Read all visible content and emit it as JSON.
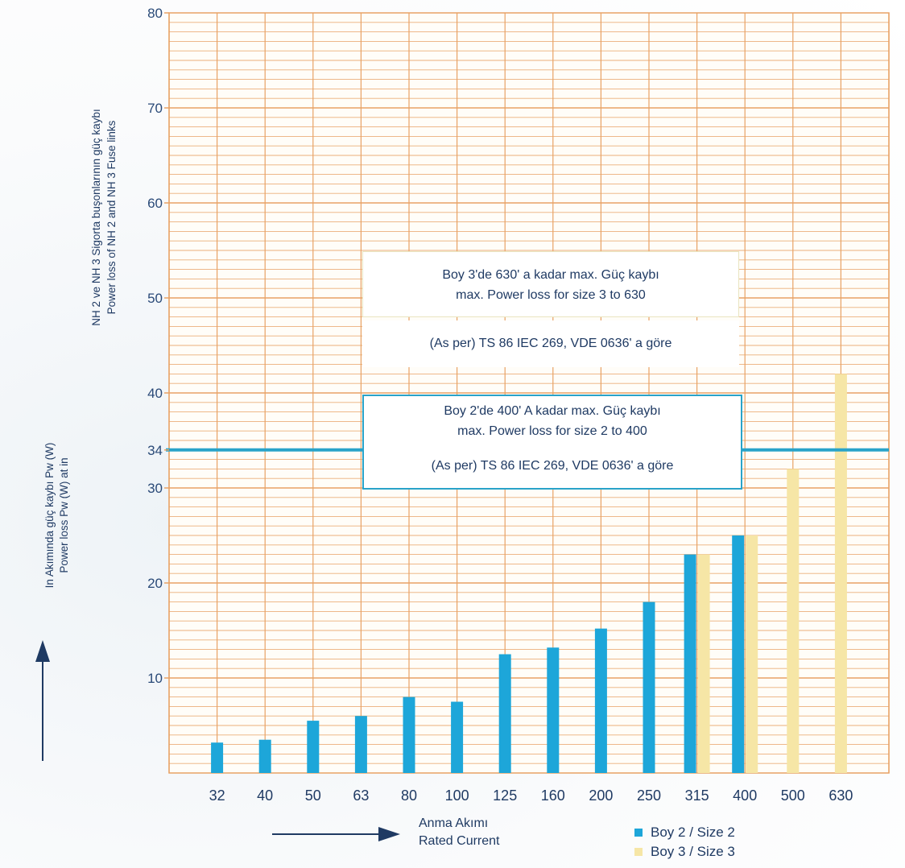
{
  "colors": {
    "size2": "#1da6d9",
    "size3": "#f6e6a6",
    "grid": "#e8a265",
    "limit_line": "#29a3c9"
  },
  "chart_data": {
    "type": "bar",
    "categories": [
      "32",
      "40",
      "50",
      "63",
      "80",
      "100",
      "125",
      "160",
      "200",
      "250",
      "315",
      "400",
      "500",
      "630"
    ],
    "series": [
      {
        "name": "Boy 2 / Size 2",
        "values": [
          3.2,
          3.5,
          5.5,
          6,
          8,
          7.5,
          12.5,
          13.2,
          15.2,
          18,
          23,
          25,
          null,
          null
        ]
      },
      {
        "name": "Boy 3 / Size 3",
        "values": [
          null,
          null,
          null,
          null,
          null,
          null,
          null,
          null,
          null,
          null,
          23,
          25,
          32,
          42
        ]
      }
    ],
    "ylim": [
      0,
      80
    ],
    "yticks": [
      10,
      20,
      30,
      34,
      40,
      50,
      60,
      70,
      80
    ],
    "reference_lines": [
      {
        "value": 34,
        "label": "34"
      }
    ],
    "ylabel_lines": [
      "NH 2 ve NH 3 Sigorta buşonlarının güç kaybı",
      "Power loss of NH 2 and NH 3 Fuse links",
      "In Akımında güç kaybı Pw (W)",
      "Power loss Pw (W) at in"
    ],
    "xlabel_lines": [
      "Anma Akımı",
      "Rated Current"
    ],
    "grid": true,
    "legend_position": "bottom-right"
  },
  "annotations": {
    "size3_box": {
      "line1": "Boy 3'de 630' a kadar max. Güç kaybı",
      "line2": "max.  Power  loss  for  size  3    to  630",
      "line3": "(As per) TS 86 IEC 269, VDE 0636' a göre"
    },
    "size2_box": {
      "line1": "Boy 2'de 400' A kadar max. Güç kaybı",
      "line2": "max.  Power  loss  for  size  2    to  400",
      "line3": "(As per) TS 86 IEC 269, VDE 0636' a göre"
    }
  },
  "legend": {
    "size2": "Boy 2 / Size 2",
    "size3": "Boy 3 / Size 3"
  }
}
